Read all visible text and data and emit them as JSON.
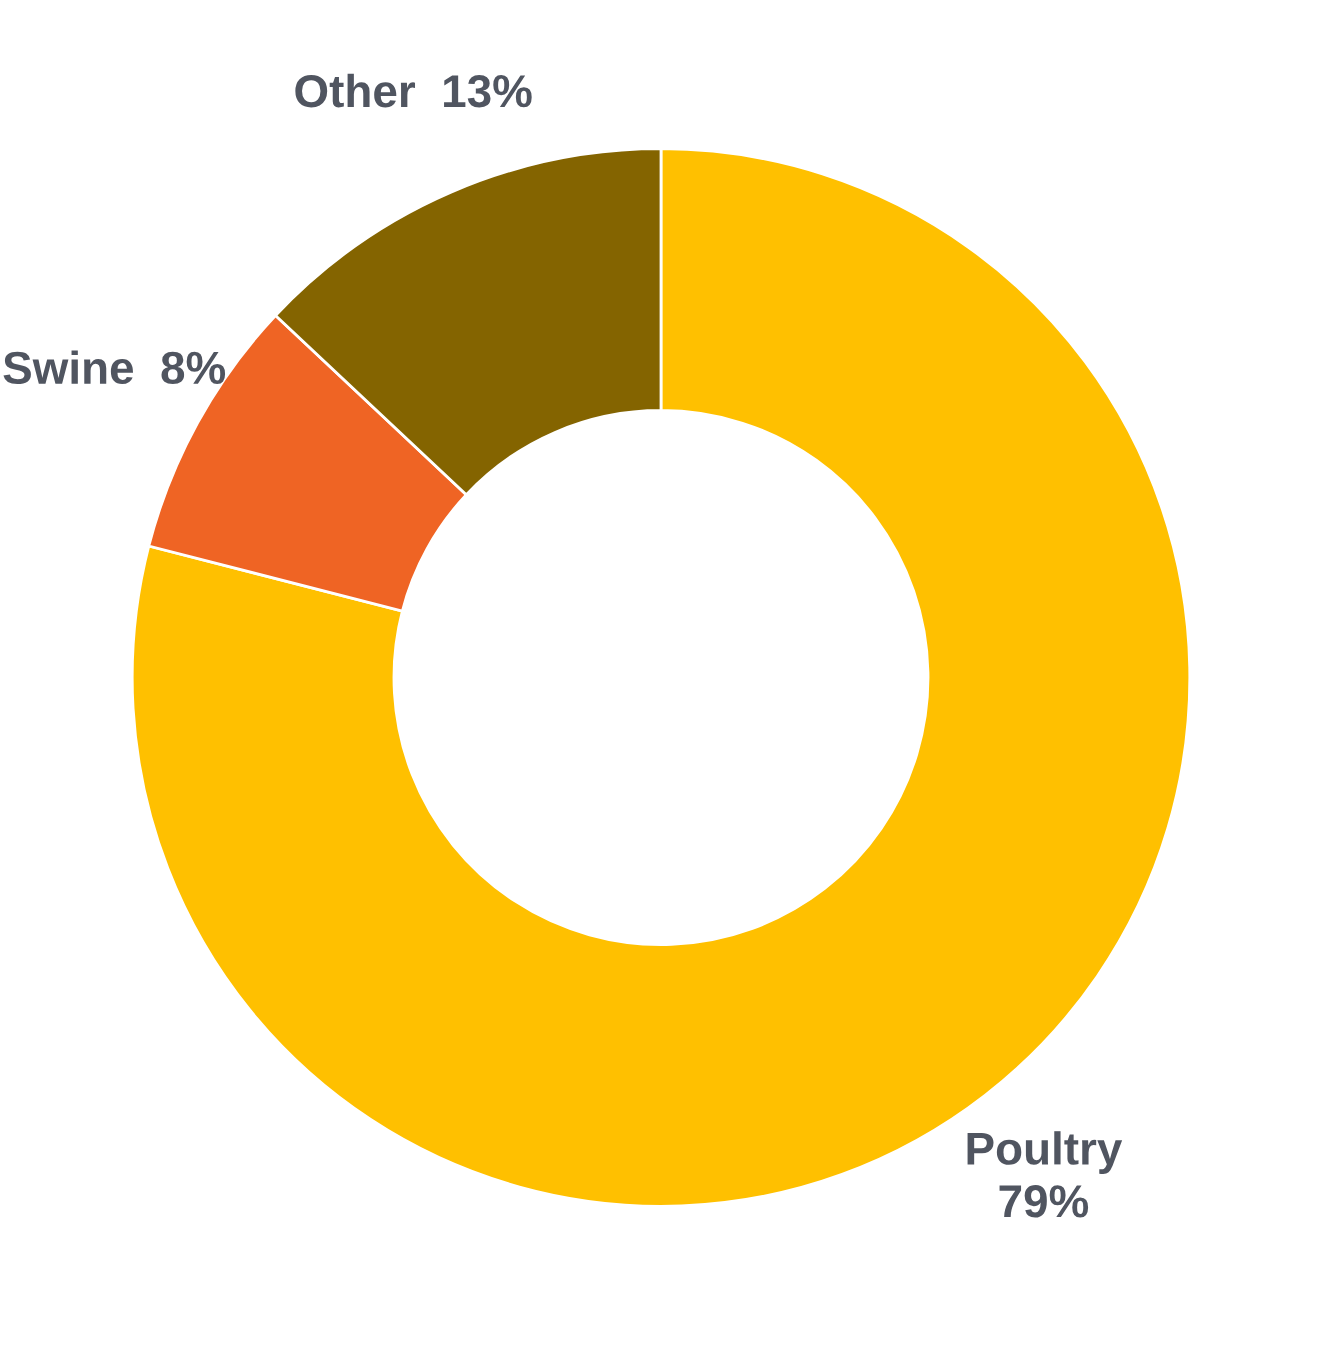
{
  "chart_data": {
    "type": "donut",
    "categories": [
      "Poultry",
      "Swine",
      "Other"
    ],
    "values": [
      79,
      8,
      13
    ],
    "value_labels": [
      "79%",
      "8%",
      "13%"
    ],
    "colors": [
      "#ffc000",
      "#ef6424",
      "#846400"
    ],
    "legend": false
  }
}
